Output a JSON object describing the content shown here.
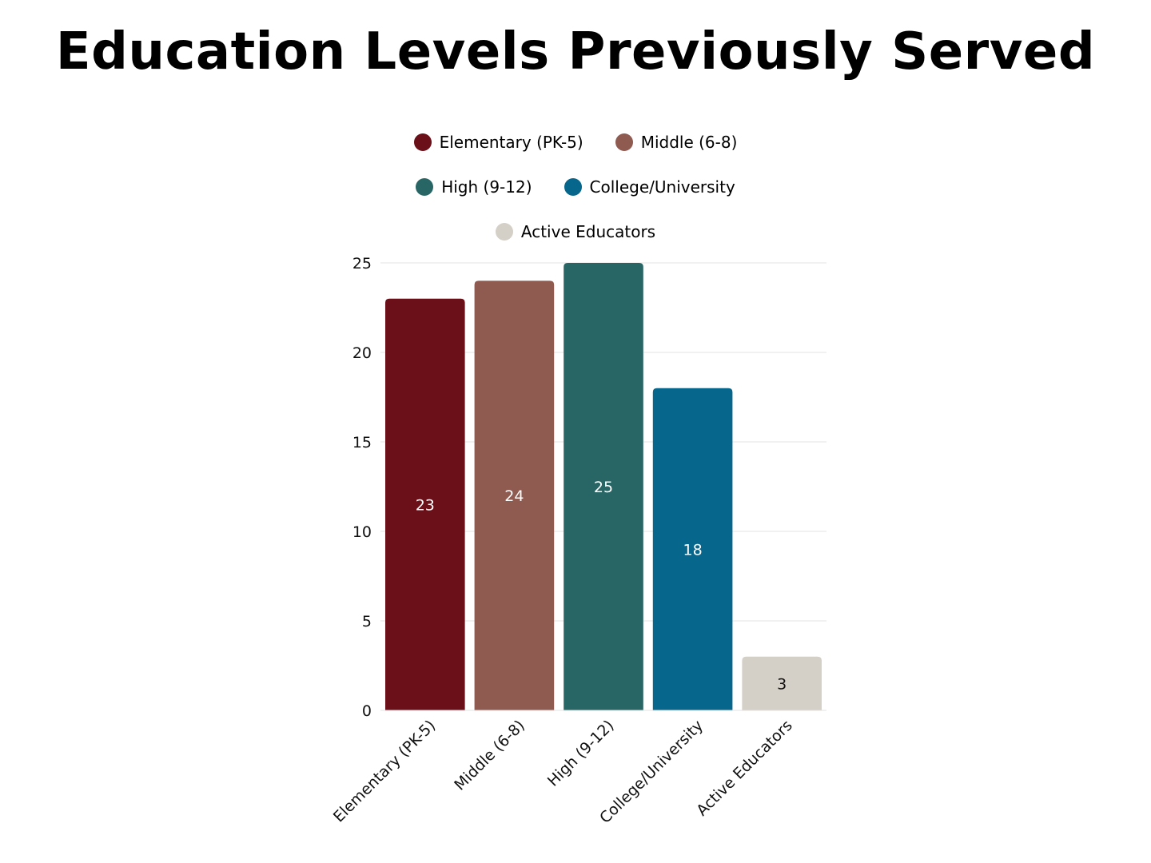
{
  "chart_data": {
    "type": "bar",
    "title": "Education Levels Previously Served",
    "categories": [
      "Elementary (PK-5)",
      "Middle (6-8)",
      "High (9-12)",
      "College/University",
      "Active Educators"
    ],
    "values": [
      23,
      24,
      25,
      18,
      3
    ],
    "colors": [
      "#6b0f18",
      "#8f5a4f",
      "#286665",
      "#07668c",
      "#d4cfc7"
    ],
    "label_colors": [
      "#ffffff",
      "#ffffff",
      "#ffffff",
      "#ffffff",
      "#111111"
    ],
    "ylim": [
      0,
      25
    ],
    "yticks": [
      0,
      5,
      10,
      15,
      20,
      25
    ],
    "grid": true,
    "legend_placement": "top-center",
    "legend": [
      [
        "Elementary (PK-5)",
        "Middle (6-8)"
      ],
      [
        "High (9-12)",
        "College/University"
      ],
      [
        "Active Educators"
      ]
    ]
  }
}
